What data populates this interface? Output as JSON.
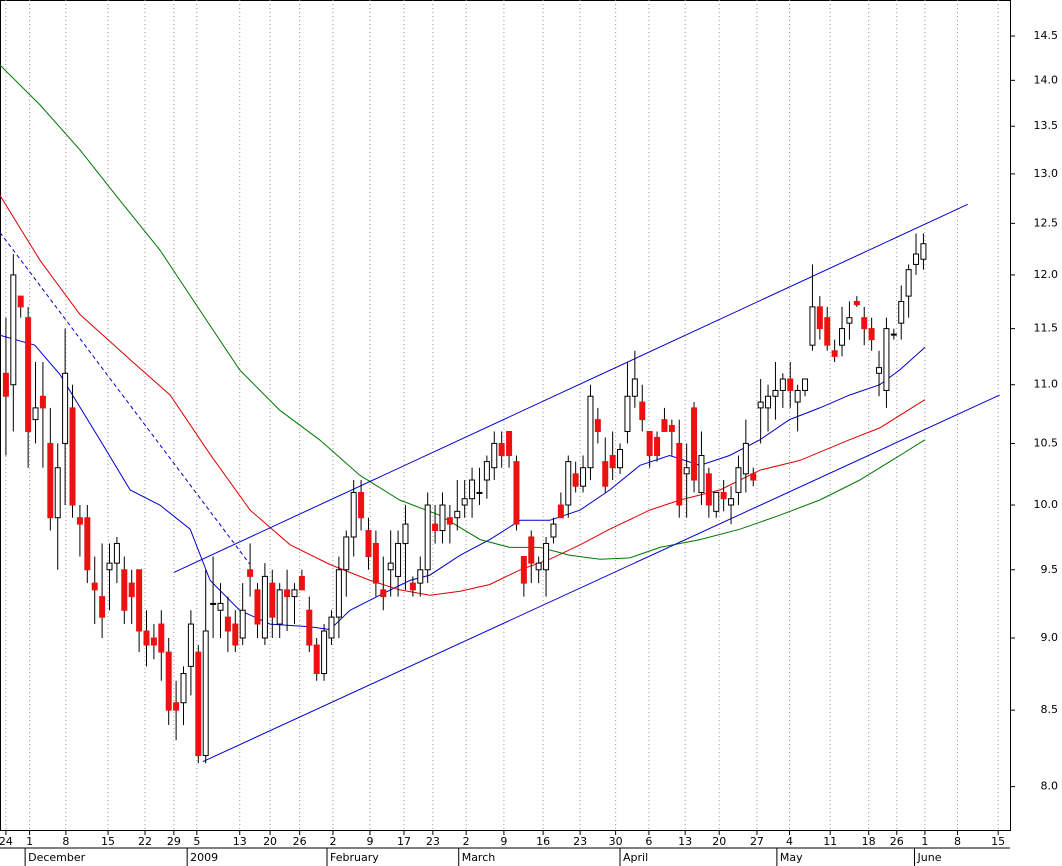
{
  "chart_data": {
    "type": "candlestick",
    "log_scale": true,
    "grid": true,
    "up_color": "#ffffff",
    "down_color": "#ee1111",
    "xlim": [
      -0.8,
      135.7
    ],
    "ylim": [
      7.73,
      14.92
    ],
    "yticks": [
      {
        "value": 8,
        "label": "8.0"
      },
      8.5,
      {
        "value": 9,
        "label": "9.0"
      },
      9.5,
      {
        "value": 10,
        "label": "10.0"
      },
      10.5,
      {
        "value": 11,
        "label": "11.0"
      },
      11.5,
      {
        "value": 12,
        "label": "12.0"
      },
      12.5,
      {
        "value": 13,
        "label": "13.0"
      },
      13.5,
      {
        "value": 14,
        "label": "14.0"
      },
      14.5
    ],
    "xticks": [
      {
        "value": 0,
        "label": "24"
      },
      {
        "value": 3.2,
        "label": "1"
      },
      {
        "value": 8.1,
        "label": "8"
      },
      {
        "value": 13.8,
        "label": "15"
      },
      {
        "value": 18.8,
        "label": "22"
      },
      {
        "value": 22.7,
        "label": "29"
      },
      {
        "value": 25.8,
        "label": "5"
      },
      {
        "value": 31.6,
        "label": "13"
      },
      {
        "value": 35.7,
        "label": "20"
      },
      {
        "value": 39.7,
        "label": "26"
      },
      {
        "value": 44.2,
        "label": "2"
      },
      {
        "value": 49.2,
        "label": "9"
      },
      {
        "value": 53.8,
        "label": "17"
      },
      {
        "value": 57.7,
        "label": "23"
      },
      {
        "value": 62.2,
        "label": "2"
      },
      {
        "value": 67.3,
        "label": "9"
      },
      {
        "value": 72.6,
        "label": "16"
      },
      {
        "value": 77.6,
        "label": "23"
      },
      {
        "value": 82.4,
        "label": "30"
      },
      {
        "value": 86.9,
        "label": "6"
      },
      {
        "value": 91.8,
        "label": "13"
      },
      {
        "value": 96.4,
        "label": "20"
      },
      {
        "value": 101.5,
        "label": "27"
      },
      {
        "value": 105.9,
        "label": "4"
      },
      {
        "value": 111.4,
        "label": "11"
      },
      {
        "value": 116.6,
        "label": "18"
      },
      {
        "value": 120.4,
        "label": "26"
      },
      {
        "value": 124.2,
        "label": "1"
      },
      {
        "value": 128.6,
        "label": "8"
      },
      {
        "value": 134.1,
        "label": "15"
      }
    ],
    "months": [
      {
        "value": 3,
        "label": "December"
      },
      {
        "value": 24.9,
        "label": "2009"
      },
      {
        "value": 43.8,
        "label": "February"
      },
      {
        "value": 61.6,
        "label": "March"
      },
      {
        "value": 83.4,
        "label": "April"
      },
      {
        "value": 104.6,
        "label": "May"
      },
      {
        "value": 123.2,
        "label": "June"
      }
    ],
    "open": [
      11.1,
      11.0,
      11.8,
      11.6,
      10.7,
      10.9,
      10.5,
      9.9,
      10.5,
      10.8,
      9.9,
      9.9,
      9.4,
      9.3,
      9.5,
      9.55,
      9.5,
      9.4,
      9.5,
      9.05,
      9.0,
      9.1,
      8.9,
      8.55,
      8.55,
      8.8,
      8.9,
      8.2,
      9.25,
      9.2,
      9.15,
      9.1,
      9.0,
      9.5,
      9.35,
      9.0,
      9.4,
      9.1,
      9.35,
      9.3,
      9.45,
      9.2,
      8.95,
      8.75,
      9.0,
      9.15,
      9.5,
      9.75,
      10.1,
      9.8,
      9.7,
      9.35,
      9.5,
      9.45,
      9.7,
      9.4,
      9.4,
      9.5,
      9.85,
      9.8,
      9.9,
      9.9,
      10.0,
      10.05,
      10.1,
      10.2,
      10.3,
      10.5,
      10.6,
      10.35,
      9.6,
      9.75,
      9.5,
      9.5,
      9.75,
      10.0,
      10.0,
      10.25,
      10.15,
      10.3,
      10.7,
      10.35,
      10.4,
      10.3,
      10.6,
      10.9,
      10.85,
      10.6,
      10.55,
      10.7,
      10.65,
      10.5,
      10.25,
      10.8,
      10.1,
      10.25,
      9.95,
      10.1,
      10.0,
      10.1,
      10.25,
      10.25,
      10.8,
      10.8,
      10.9,
      10.95,
      11.05,
      10.85,
      10.95,
      11.35,
      11.7,
      11.6,
      11.3,
      11.35,
      11.55,
      11.75,
      11.6,
      11.5,
      11.1,
      10.95,
      11.45,
      11.55,
      11.8,
      12.1,
      12.15
    ],
    "high": [
      11.6,
      12.2,
      11.8,
      11.7,
      11.2,
      11.2,
      10.8,
      10.5,
      11.5,
      11.0,
      10.0,
      10.0,
      9.6,
      9.7,
      9.7,
      9.75,
      9.6,
      9.5,
      9.5,
      9.2,
      9.1,
      9.2,
      9.0,
      8.7,
      8.8,
      9.2,
      8.95,
      9.5,
      9.6,
      9.4,
      9.3,
      9.2,
      9.4,
      9.7,
      9.4,
      9.55,
      9.5,
      9.4,
      9.5,
      9.4,
      9.5,
      9.3,
      9.0,
      9.1,
      9.2,
      9.6,
      9.8,
      10.2,
      10.2,
      9.9,
      9.8,
      9.6,
      9.8,
      9.8,
      10.0,
      9.45,
      9.6,
      10.1,
      10.0,
      10.1,
      10.0,
      10.2,
      10.2,
      10.3,
      10.3,
      10.4,
      10.6,
      10.6,
      10.6,
      10.4,
      9.6,
      9.8,
      9.6,
      9.75,
      9.9,
      10.1,
      10.4,
      10.35,
      10.4,
      11.0,
      10.8,
      10.55,
      10.6,
      10.5,
      11.2,
      11.3,
      11.0,
      10.6,
      10.6,
      10.8,
      10.7,
      10.7,
      10.5,
      10.85,
      10.6,
      10.3,
      10.1,
      10.2,
      10.15,
      10.4,
      10.7,
      10.3,
      11.05,
      11.0,
      11.2,
      11.1,
      11.2,
      11.0,
      11.0,
      12.1,
      11.8,
      11.7,
      11.4,
      11.7,
      11.75,
      11.8,
      11.7,
      11.6,
      11.3,
      11.6,
      11.5,
      11.9,
      12.1,
      12.4,
      12.4
    ],
    "low": [
      10.4,
      10.6,
      11.6,
      10.3,
      10.5,
      10.3,
      9.8,
      9.5,
      10.0,
      9.9,
      9.6,
      9.4,
      9.1,
      9.0,
      9.2,
      9.4,
      9.1,
      9.1,
      8.9,
      8.8,
      8.85,
      8.7,
      8.4,
      8.3,
      8.4,
      8.6,
      8.15,
      8.15,
      9.0,
      9.0,
      8.9,
      8.9,
      8.95,
      9.3,
      9.0,
      8.95,
      9.0,
      9.0,
      9.05,
      9.1,
      9.35,
      8.9,
      8.7,
      8.7,
      8.95,
      9.0,
      9.3,
      9.6,
      9.8,
      9.5,
      9.3,
      9.2,
      9.3,
      9.3,
      9.35,
      9.3,
      9.3,
      9.4,
      9.7,
      9.7,
      9.7,
      9.8,
      9.9,
      9.9,
      10.0,
      10.05,
      10.2,
      10.3,
      10.3,
      9.8,
      9.3,
      9.4,
      9.4,
      9.3,
      9.7,
      9.9,
      9.9,
      10.1,
      10.1,
      10.2,
      10.5,
      10.1,
      10.2,
      10.25,
      10.5,
      10.8,
      10.6,
      10.3,
      10.35,
      10.6,
      10.4,
      9.9,
      9.9,
      10.1,
      10.0,
      9.9,
      9.9,
      9.95,
      9.85,
      10.0,
      10.1,
      10.15,
      10.5,
      10.6,
      10.7,
      10.8,
      10.8,
      10.6,
      10.9,
      11.3,
      11.4,
      11.3,
      11.2,
      11.25,
      11.4,
      11.7,
      11.35,
      11.3,
      10.9,
      10.8,
      11.4,
      11.4,
      11.6,
      12.0,
      12.05
    ],
    "close": [
      10.9,
      12.0,
      11.7,
      10.6,
      10.8,
      10.8,
      9.9,
      10.3,
      11.1,
      10.0,
      9.85,
      9.5,
      9.35,
      9.15,
      9.55,
      9.7,
      9.2,
      9.3,
      9.05,
      8.95,
      8.95,
      8.9,
      8.5,
      8.5,
      8.75,
      9.1,
      8.2,
      9.05,
      9.25,
      9.25,
      9.05,
      8.95,
      9.2,
      9.45,
      9.1,
      9.45,
      9.15,
      9.35,
      9.3,
      9.35,
      9.35,
      8.95,
      8.75,
      9.05,
      9.15,
      9.5,
      9.75,
      10.1,
      9.9,
      9.6,
      9.4,
      9.3,
      9.55,
      9.7,
      9.85,
      9.35,
      9.5,
      10.0,
      9.8,
      10.0,
      9.85,
      9.95,
      10.05,
      10.2,
      10.1,
      10.35,
      10.5,
      10.4,
      10.4,
      9.85,
      9.4,
      9.55,
      9.55,
      9.7,
      9.85,
      9.9,
      10.35,
      10.15,
      10.3,
      10.9,
      10.6,
      10.15,
      10.3,
      10.45,
      10.9,
      11.05,
      10.7,
      10.4,
      10.4,
      10.6,
      10.6,
      10.0,
      10.3,
      10.2,
      10.4,
      10.0,
      10.1,
      10.05,
      10.05,
      10.3,
      10.5,
      10.2,
      10.85,
      10.9,
      10.95,
      11.05,
      10.95,
      10.95,
      11.05,
      11.7,
      11.5,
      11.35,
      11.25,
      11.5,
      11.6,
      11.72,
      11.5,
      11.4,
      11.15,
      11.5,
      11.45,
      11.75,
      12.05,
      12.2,
      12.3
    ],
    "lines": [
      {
        "color": "#0000cc",
        "style": "solid",
        "x": [
          -0.8,
          3.9,
          7.3,
          12.7,
          16.8,
          20.8,
          24.9,
          27.6,
          31.6,
          35.7,
          41.1,
          43.8,
          46.5,
          50.5,
          54.6,
          57.3,
          61.4,
          65.4,
          69.5,
          73.5,
          77.6,
          81.6,
          85.7,
          89.7,
          93.8,
          97.8,
          101.9,
          105.9,
          110,
          114,
          118.1,
          120.8,
          124.2
        ],
        "values": [
          11.44,
          11.35,
          11.09,
          10.53,
          10.12,
          10.0,
          9.81,
          9.42,
          9.2,
          9.1,
          9.08,
          9.06,
          9.2,
          9.31,
          9.42,
          9.46,
          9.61,
          9.73,
          9.88,
          9.88,
          9.96,
          10.12,
          10.32,
          10.4,
          10.32,
          10.4,
          10.53,
          10.7,
          10.8,
          10.91,
          11.0,
          11.13,
          11.33
        ]
      },
      {
        "color": "#dd0000",
        "style": "solid",
        "x": [
          -0.8,
          4.6,
          10,
          16.8,
          22.2,
          27.6,
          33,
          38.4,
          43.8,
          49.2,
          53.2,
          57.3,
          61.4,
          65.4,
          69.5,
          73.5,
          77.6,
          81.6,
          87,
          91.1,
          96.5,
          101.9,
          107.3,
          114,
          118.1,
          124.2
        ],
        "values": [
          12.78,
          12.14,
          11.63,
          11.22,
          10.91,
          10.41,
          9.96,
          9.69,
          9.54,
          9.42,
          9.35,
          9.31,
          9.34,
          9.39,
          9.5,
          9.58,
          9.69,
          9.81,
          9.96,
          10.04,
          10.12,
          10.28,
          10.36,
          10.53,
          10.63,
          10.87
        ]
      },
      {
        "color": "#007700",
        "style": "solid",
        "x": [
          -0.8,
          4.6,
          10,
          15.4,
          20.8,
          26.2,
          31.6,
          37,
          42.4,
          47.8,
          53.2,
          58.6,
          64.1,
          68.1,
          72.2,
          76.2,
          80.3,
          84.3,
          88.4,
          93.8,
          99.2,
          104.6,
          110,
          115.4,
          120.8,
          124.2
        ],
        "values": [
          14.17,
          13.73,
          13.25,
          12.73,
          12.24,
          11.67,
          11.13,
          10.78,
          10.53,
          10.24,
          10.04,
          9.92,
          9.73,
          9.67,
          9.67,
          9.61,
          9.58,
          9.59,
          9.67,
          9.73,
          9.81,
          9.92,
          10.04,
          10.2,
          10.4,
          10.53
        ]
      },
      {
        "color": "#0000cc",
        "style": "dashed",
        "x": [
          -0.8,
          33
        ],
        "values": [
          12.41,
          9.54
        ]
      },
      {
        "color": "#0000cc",
        "style": "solid",
        "x": [
          22.7,
          130
        ],
        "values": [
          9.48,
          12.69
        ]
      },
      {
        "color": "#0000cc",
        "style": "solid",
        "x": [
          26.6,
          134.3
        ],
        "values": [
          8.16,
          10.91
        ]
      }
    ]
  }
}
